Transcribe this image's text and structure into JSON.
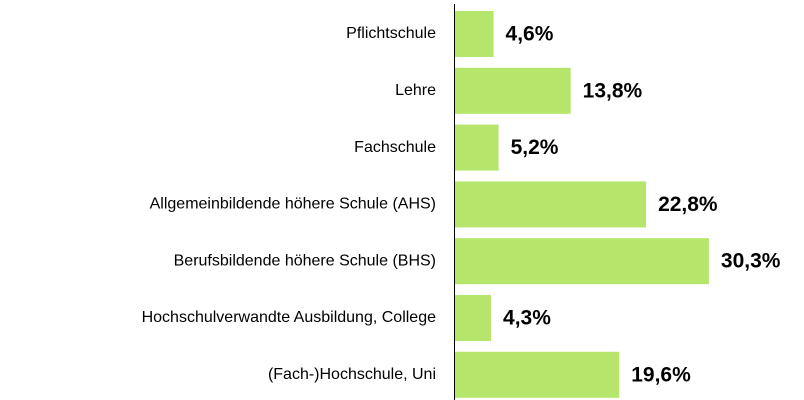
{
  "chart_data": {
    "type": "bar",
    "orientation": "horizontal",
    "categories": [
      "Pflichtschule",
      "Lehre",
      "Fachschule",
      "Allgemeinbildende höhere Schule (AHS)",
      "Berufsbildende höhere Schule (BHS)",
      "Hochschulverwandte Ausbildung, College",
      "(Fach-)Hochschule, Uni"
    ],
    "values": [
      4.6,
      13.8,
      5.2,
      22.8,
      30.3,
      4.3,
      19.6
    ],
    "value_labels": [
      "4,6%",
      "13,8%",
      "5,2%",
      "22,8%",
      "30,3%",
      "4,3%",
      "19,6%"
    ],
    "color": "#b5e56a"
  }
}
